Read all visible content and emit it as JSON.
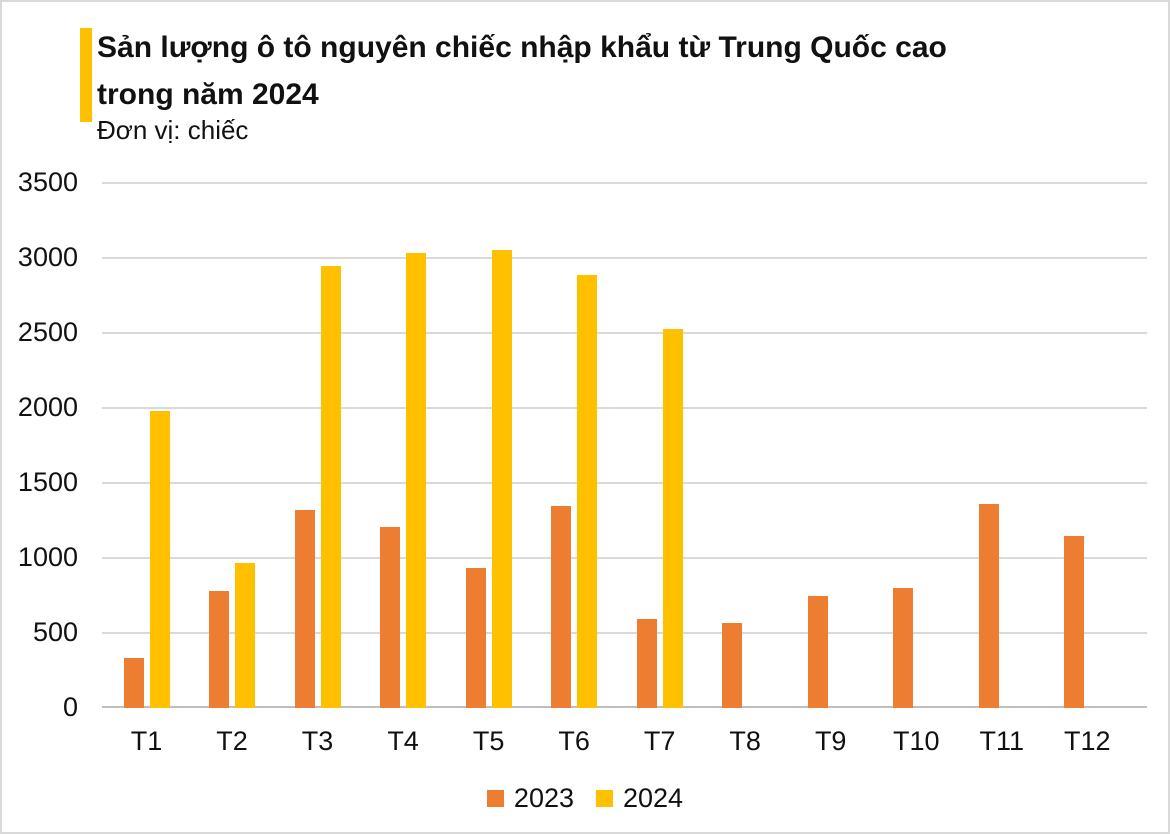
{
  "page": {
    "background": "#ffffff",
    "frame_border_color": "#d9d9d9"
  },
  "header": {
    "accent_color": "#FFC000",
    "title_lines": [
      "Sản lượng ô tô nguyên chiếc nhập khẩu từ Trung Quốc cao",
      "trong năm 2024"
    ],
    "unit_label": "Đơn vị: chiếc"
  },
  "chart_data": {
    "type": "bar",
    "title": "Sản lượng ô tô nguyên chiếc nhập khẩu từ Trung Quốc cao trong năm 2024",
    "subtitle": "Đơn vị: chiếc",
    "categories": [
      "T1",
      "T2",
      "T3",
      "T4",
      "T5",
      "T6",
      "T7",
      "T8",
      "T9",
      "T10",
      "T11",
      "T12"
    ],
    "series": [
      {
        "name": "2023",
        "color": "#ED7D31",
        "values": [
          335,
          780,
          1320,
          1210,
          935,
          1345,
          595,
          565,
          745,
          800,
          1360,
          1150
        ]
      },
      {
        "name": "2024",
        "color": "#FFC000",
        "values": [
          1980,
          970,
          2950,
          3035,
          3055,
          2890,
          2530,
          null,
          null,
          null,
          null,
          null
        ]
      }
    ],
    "xlabel": "",
    "ylabel": "",
    "ylim": [
      0,
      3500
    ],
    "y_ticks": [
      0,
      500,
      1000,
      1500,
      2000,
      2500,
      3000,
      3500
    ],
    "grid": true,
    "gridline_color": "#d9d9d9",
    "axis_line_color": "#bfbfbf",
    "legend_position": "bottom"
  },
  "legend": {
    "items": [
      {
        "label": "2023",
        "color": "#ED7D31"
      },
      {
        "label": "2024",
        "color": "#FFC000"
      }
    ]
  }
}
